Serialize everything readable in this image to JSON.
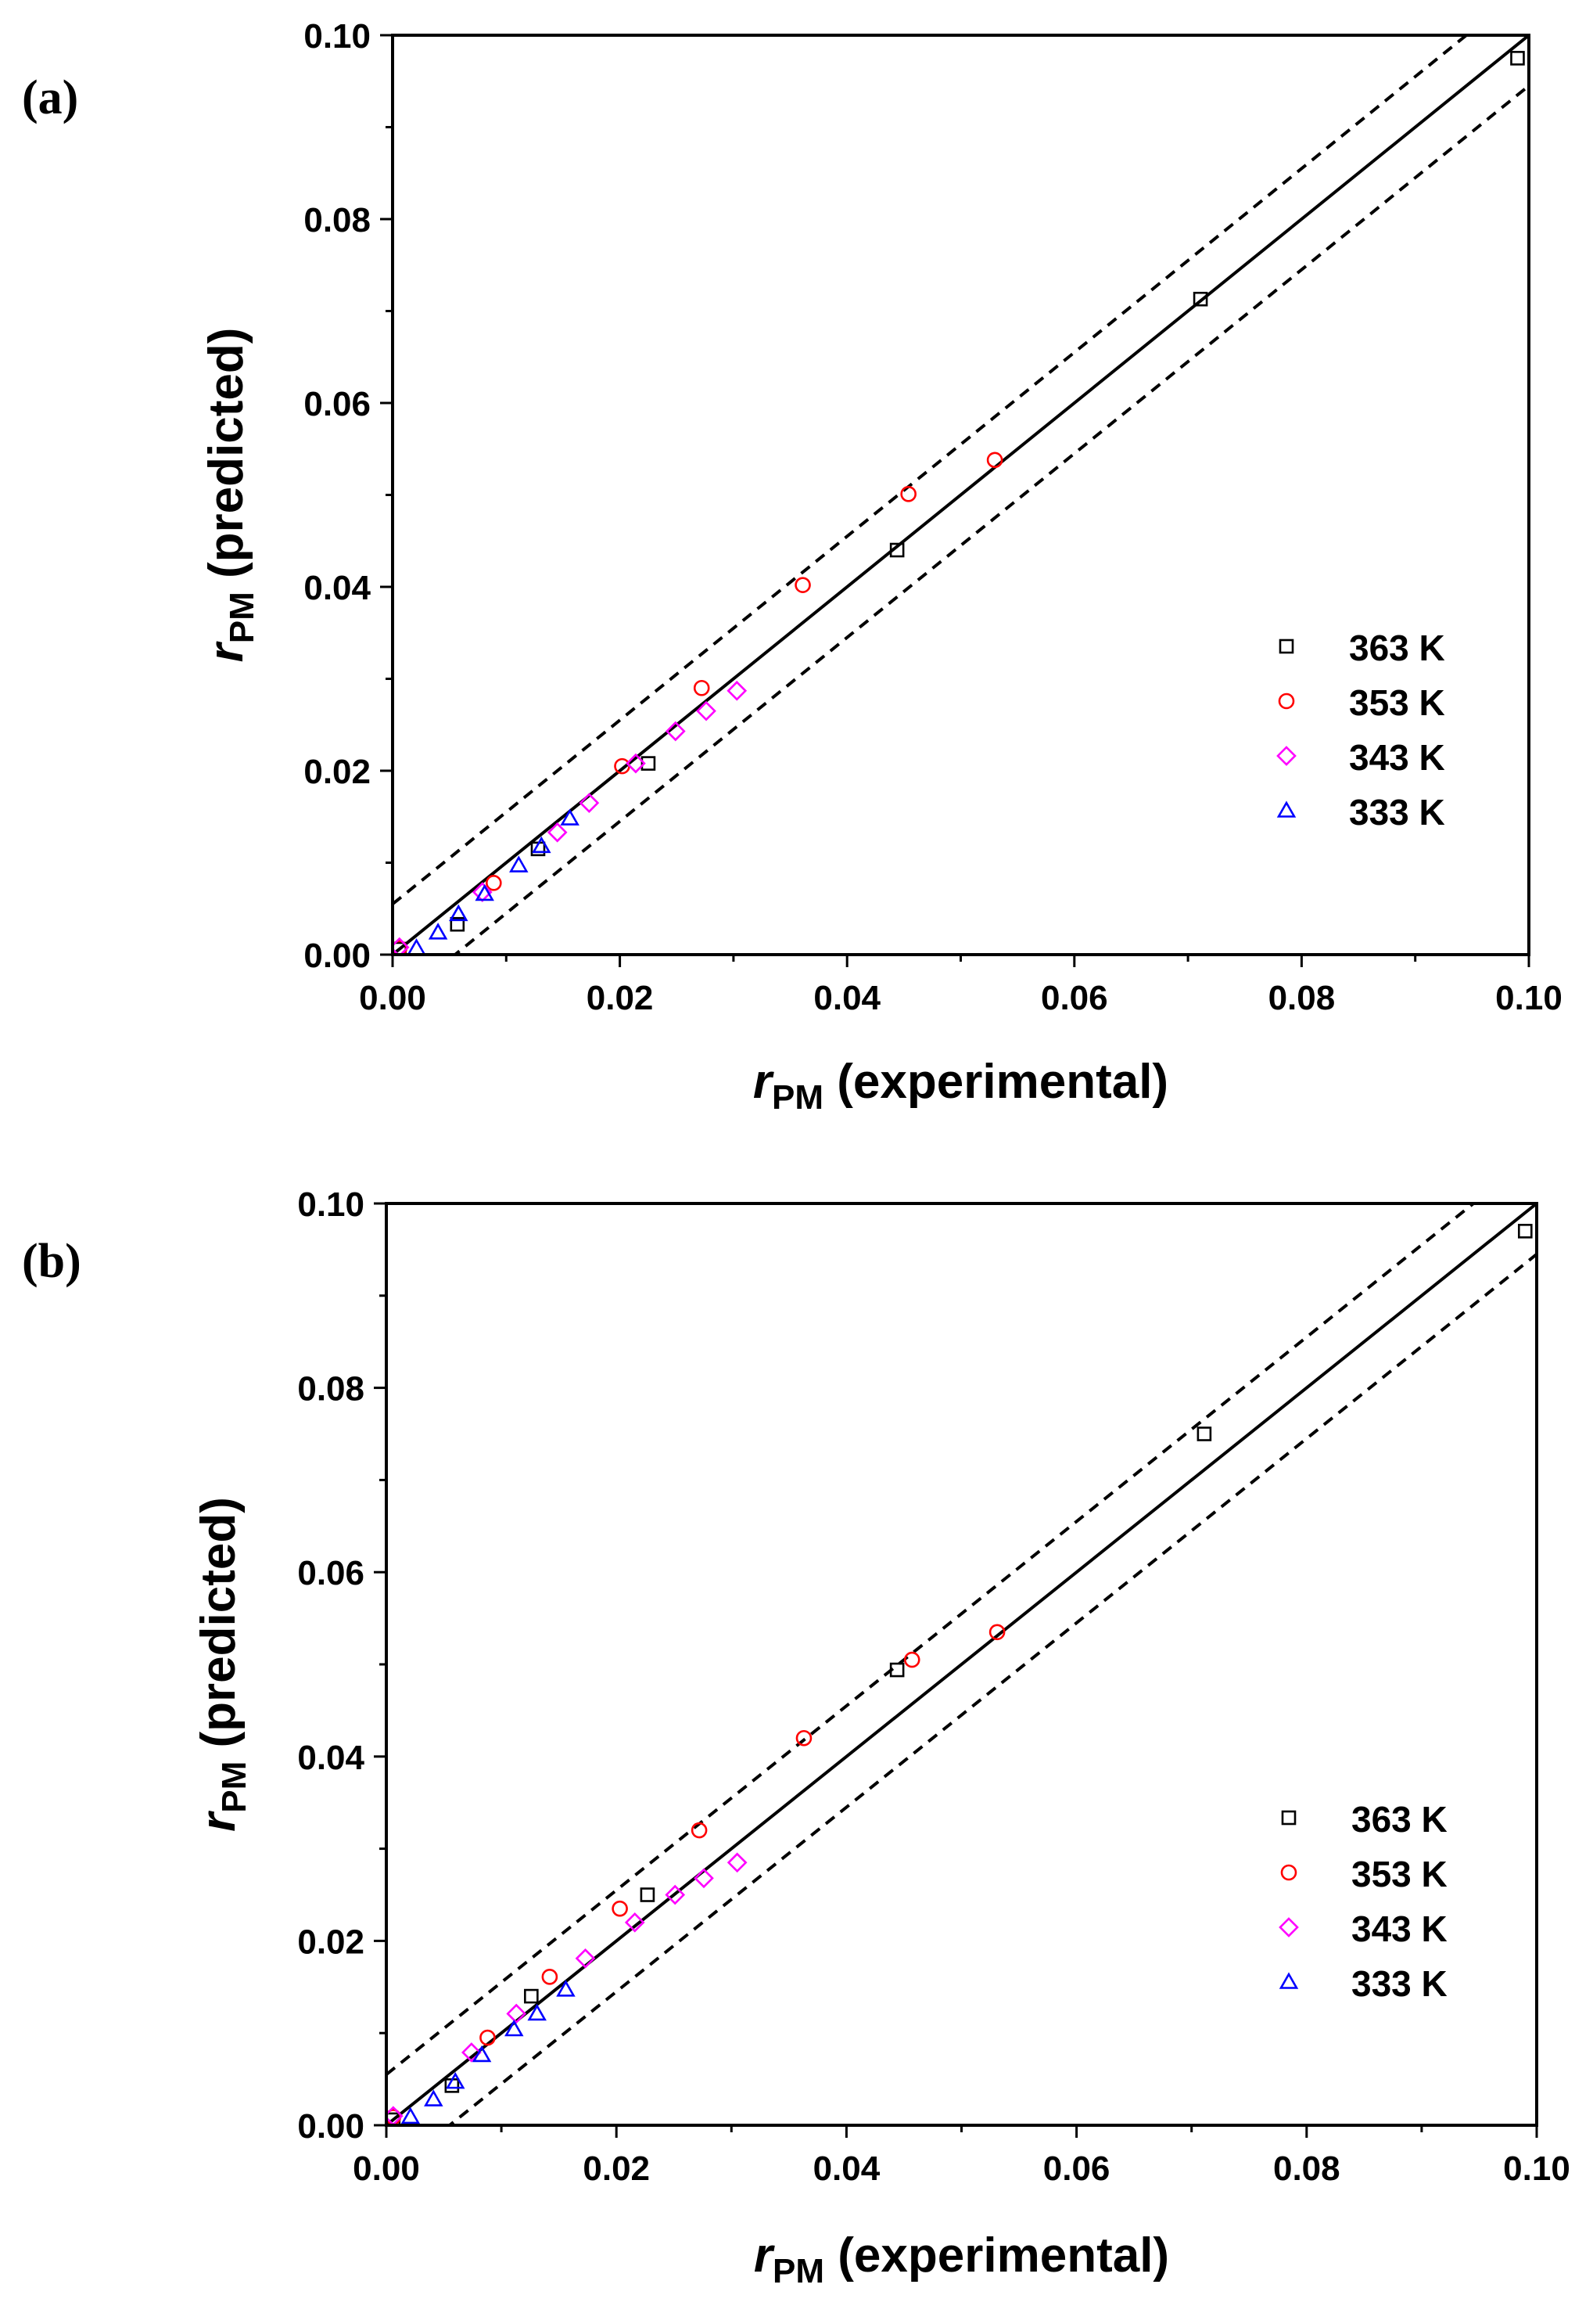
{
  "chart_data": [
    {
      "panel_label": "(a)",
      "type": "scatter",
      "xlabel": {
        "italic": "r",
        "sub": "PM",
        "rest": " (experimental)"
      },
      "ylabel": {
        "italic": "r",
        "sub": "PM",
        "rest": " (predicted)"
      },
      "xlim": [
        0,
        0.1
      ],
      "ylim": [
        0,
        0.1
      ],
      "xticks": [
        "0.00",
        "0.02",
        "0.04",
        "0.06",
        "0.08",
        "0.10"
      ],
      "yticks": [
        "0.00",
        "0.02",
        "0.04",
        "0.06",
        "0.08",
        "0.10"
      ],
      "tick_values": [
        0,
        0.02,
        0.04,
        0.06,
        0.08,
        0.1
      ],
      "minor_tick_values": [
        0.01,
        0.03,
        0.05,
        0.07,
        0.09
      ],
      "lines": [
        {
          "name": "parity",
          "style": "solid",
          "offset": 0
        },
        {
          "name": "upper-bound",
          "style": "dashed",
          "offset": 0.0055
        },
        {
          "name": "lower-bound",
          "style": "dashed",
          "offset": -0.0055
        }
      ],
      "legend_position": "lower-right",
      "series": [
        {
          "name": "363 K",
          "marker": "square",
          "color": "#000000",
          "points": [
            [
              0.0006,
              0.0006
            ],
            [
              0.0057,
              0.0033
            ],
            [
              0.0128,
              0.0115
            ],
            [
              0.0225,
              0.0208
            ],
            [
              0.0444,
              0.044
            ],
            [
              0.0711,
              0.0713
            ],
            [
              0.099,
              0.0975
            ]
          ]
        },
        {
          "name": "353 K",
          "marker": "circle",
          "color": "#ff0000",
          "points": [
            [
              0.0006,
              0.0007
            ],
            [
              0.0089,
              0.0078
            ],
            [
              0.0202,
              0.0205
            ],
            [
              0.0272,
              0.029
            ],
            [
              0.0361,
              0.0402
            ],
            [
              0.0454,
              0.0501
            ],
            [
              0.053,
              0.0538
            ]
          ]
        },
        {
          "name": "343 K",
          "marker": "diamond",
          "color": "#ff00ff",
          "points": [
            [
              0.0006,
              0.0008
            ],
            [
              0.0079,
              0.0068
            ],
            [
              0.0145,
              0.0133
            ],
            [
              0.0173,
              0.0165
            ],
            [
              0.0214,
              0.0208
            ],
            [
              0.0249,
              0.0243
            ],
            [
              0.0276,
              0.0265
            ],
            [
              0.0303,
              0.0287
            ]
          ]
        },
        {
          "name": "333 K",
          "marker": "triangle",
          "color": "#0000ff",
          "points": [
            [
              0.0021,
              0.0007
            ],
            [
              0.004,
              0.0024
            ],
            [
              0.0058,
              0.0044
            ],
            [
              0.0081,
              0.0066
            ],
            [
              0.0111,
              0.0097
            ],
            [
              0.0131,
              0.0118
            ],
            [
              0.0156,
              0.0148
            ]
          ]
        }
      ]
    },
    {
      "panel_label": "(b)",
      "type": "scatter",
      "xlabel": {
        "italic": "r",
        "sub": "PM",
        "rest": " (experimental)"
      },
      "ylabel": {
        "italic": "r",
        "sub": "PM",
        "rest": " (predicted)"
      },
      "xlim": [
        0,
        0.1
      ],
      "ylim": [
        0,
        0.1
      ],
      "xticks": [
        "0.00",
        "0.02",
        "0.04",
        "0.06",
        "0.08",
        "0.10"
      ],
      "yticks": [
        "0.00",
        "0.02",
        "0.04",
        "0.06",
        "0.08",
        "0.10"
      ],
      "tick_values": [
        0,
        0.02,
        0.04,
        0.06,
        0.08,
        0.1
      ],
      "minor_tick_values": [
        0.01,
        0.03,
        0.05,
        0.07,
        0.09
      ],
      "lines": [
        {
          "name": "parity",
          "style": "solid",
          "offset": 0
        },
        {
          "name": "upper-bound",
          "style": "dashed",
          "offset": 0.0055
        },
        {
          "name": "lower-bound",
          "style": "dashed",
          "offset": -0.0055
        }
      ],
      "legend_position": "lower-right",
      "series": [
        {
          "name": "363 K",
          "marker": "square",
          "color": "#000000",
          "points": [
            [
              0.0006,
              0.0006
            ],
            [
              0.0057,
              0.0043
            ],
            [
              0.0126,
              0.014
            ],
            [
              0.0227,
              0.025
            ],
            [
              0.0444,
              0.0494
            ],
            [
              0.0711,
              0.075
            ],
            [
              0.099,
              0.097
            ]
          ]
        },
        {
          "name": "353 K",
          "marker": "circle",
          "color": "#ff0000",
          "points": [
            [
              0.0006,
              0.0009
            ],
            [
              0.0088,
              0.0095
            ],
            [
              0.0142,
              0.0161
            ],
            [
              0.0203,
              0.0235
            ],
            [
              0.0272,
              0.032
            ],
            [
              0.0363,
              0.042
            ],
            [
              0.0457,
              0.0505
            ],
            [
              0.0531,
              0.0535
            ]
          ]
        },
        {
          "name": "343 K",
          "marker": "diamond",
          "color": "#ff00ff",
          "points": [
            [
              0.0006,
              0.001
            ],
            [
              0.0074,
              0.0079
            ],
            [
              0.0113,
              0.0121
            ],
            [
              0.0173,
              0.0181
            ],
            [
              0.0216,
              0.022
            ],
            [
              0.0251,
              0.025
            ],
            [
              0.0276,
              0.0268
            ],
            [
              0.0305,
              0.0285
            ]
          ]
        },
        {
          "name": "333 K",
          "marker": "triangle",
          "color": "#0000ff",
          "points": [
            [
              0.0021,
              0.0009
            ],
            [
              0.0041,
              0.0028
            ],
            [
              0.006,
              0.0047
            ],
            [
              0.0083,
              0.0076
            ],
            [
              0.0111,
              0.0104
            ],
            [
              0.0131,
              0.0121
            ],
            [
              0.0156,
              0.0147
            ]
          ]
        }
      ]
    }
  ]
}
